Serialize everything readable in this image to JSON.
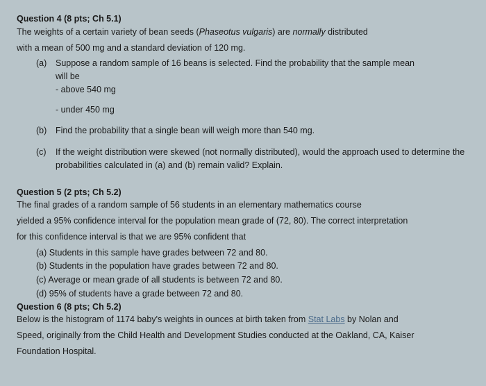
{
  "q4": {
    "header": "Question 4 (8 pts; Ch 5.1)",
    "intro1a": "The weights of a certain variety of bean seeds (",
    "species": "Phaseotus vulgaris",
    "intro1b": ") are ",
    "normally": "normally",
    "intro1c": " distributed",
    "intro2": "with a mean of 500 mg and a standard deviation of 120 mg.",
    "a_label": "(a)",
    "a_text1": "Suppose a random sample of 16 beans is selected. Find the probability that the sample mean",
    "a_text2": "will be",
    "a_bullet1": "- above 540 mg",
    "a_bullet2": "- under 450 mg",
    "b_label": "(b)",
    "b_text": "Find the probability that a single bean will weigh more than 540 mg.",
    "c_label": "(c)",
    "c_text": "If the weight distribution were skewed (not normally distributed), would the approach used to determine the probabilities calculated in (a) and (b) remain valid? Explain."
  },
  "q5": {
    "header": "Question 5 (2 pts; Ch 5.2)",
    "intro1": "The final grades of a random sample of 56 students in an elementary mathematics course",
    "intro2": "yielded a 95% confidence interval for the population mean grade of (72, 80). The correct interpretation",
    "intro3": "for this confidence interval is that we are 95% confident that",
    "a": "(a)  Students in this sample have grades between 72 and 80.",
    "b": "(b)  Students in the population have grades between 72 and 80.",
    "c": "(c)  Average or mean grade of all students is between 72 and 80.",
    "d": "(d)  95% of students have a grade between 72 and 80."
  },
  "q6": {
    "header": "Question 6 (8 pts; Ch 5.2)",
    "intro1a": "Below is the histogram of 1174 baby's weights in ounces at birth taken from ",
    "link": "Stat Labs",
    "intro1b": " by Nolan and",
    "intro2": "Speed, originally from the Child Health and Development Studies conducted at the Oakland, CA, Kaiser",
    "intro3": "Foundation Hospital."
  }
}
